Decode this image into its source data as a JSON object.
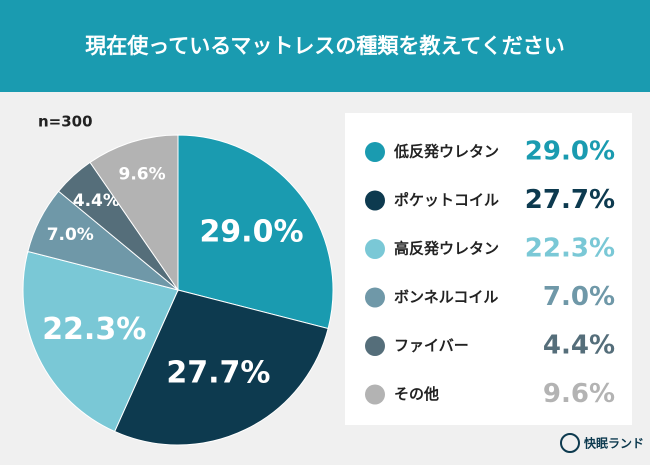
{
  "chart_data": {
    "type": "pie",
    "title": "現在使っているマットレスの種類を教えてください",
    "subtitle": "n=300",
    "categories": [
      "低反発ウレタン",
      "ポケットコイル",
      "高反発ウレタン",
      "ボンネルコイル",
      "ファイバー",
      "その他"
    ],
    "values": [
      29.0,
      27.7,
      22.3,
      7.0,
      4.4,
      9.6
    ],
    "value_labels": [
      "29.0%",
      "27.7%",
      "22.3%",
      "7.0%",
      "4.4%",
      "9.6%"
    ],
    "colors": [
      "#1a9bb0",
      "#0d3a4f",
      "#7ac8d6",
      "#6f98a8",
      "#556e7a",
      "#b3b3b3"
    ],
    "legend": "right",
    "source": "快眠ランド"
  }
}
